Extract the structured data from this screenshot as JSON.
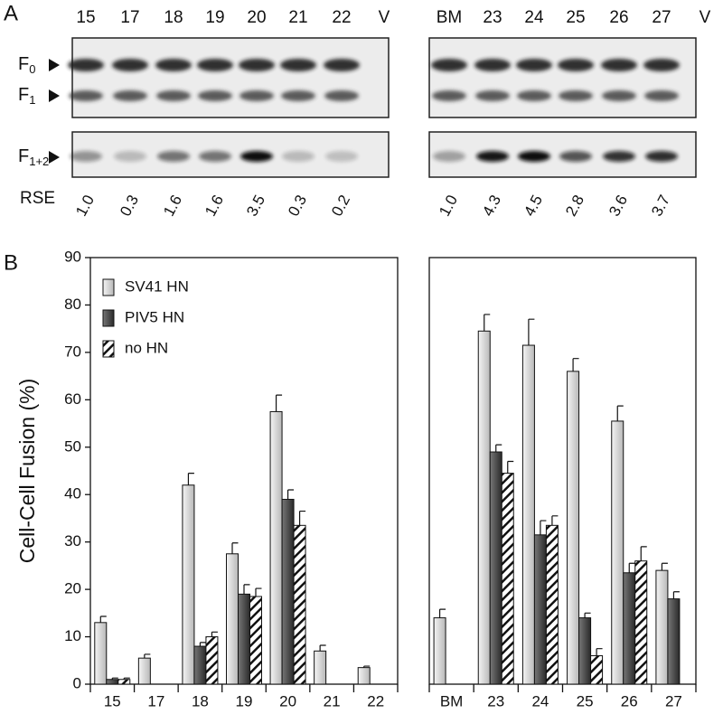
{
  "blot": {
    "panel_label": "A",
    "lanes_left": [
      "15",
      "17",
      "18",
      "19",
      "20",
      "21",
      "22",
      "V"
    ],
    "lanes_right": [
      "BM",
      "23",
      "24",
      "25",
      "26",
      "27",
      "V"
    ],
    "bands": [
      {
        "main": "F",
        "sub": "0"
      },
      {
        "main": "F",
        "sub": "1"
      },
      {
        "main": "F",
        "sub": "1+2"
      }
    ],
    "rse_label": "RSE",
    "rse_left": [
      "1.0",
      "0.3",
      "1.6",
      "1.6",
      "3.5",
      "0.3",
      "0.2"
    ],
    "rse_right": [
      "1.0",
      "4.3",
      "4.5",
      "2.8",
      "3.6",
      "3.7"
    ]
  },
  "chart_data": [
    {
      "type": "bar",
      "panel_label": "B",
      "y_label": "Cell-Cell Fusion (%)",
      "categories": [
        "15",
        "17",
        "18",
        "19",
        "20",
        "21",
        "22"
      ],
      "ylim": [
        0,
        90
      ],
      "yticks": [
        0,
        10,
        20,
        30,
        40,
        50,
        60,
        70,
        80,
        90
      ],
      "legend": "upper left",
      "series": [
        {
          "name": "SV41 HN",
          "color": "#d9d9d9",
          "values": [
            13,
            5.5,
            42,
            27.5,
            57.5,
            7,
            3.5
          ],
          "errors": [
            1.3,
            0.8,
            2.5,
            2.3,
            3.5,
            1.2,
            0.3
          ]
        },
        {
          "name": "PIV5 HN",
          "color": "#4d4d4d",
          "values": [
            1,
            null,
            8,
            19,
            39,
            null,
            null
          ],
          "errors": [
            0.3,
            null,
            0.8,
            2,
            2,
            null,
            null
          ]
        },
        {
          "name": "no HN",
          "color": "#ffffff",
          "hatch": true,
          "values": [
            1,
            null,
            10,
            18.5,
            33.5,
            null,
            null
          ],
          "errors": [
            0.3,
            null,
            1,
            1.7,
            3,
            null,
            null
          ]
        }
      ]
    },
    {
      "type": "bar",
      "categories": [
        "BM",
        "23",
        "24",
        "25",
        "26",
        "27"
      ],
      "ylim": [
        0,
        90
      ],
      "series": [
        {
          "color": "#d9d9d9",
          "values": [
            14,
            74.5,
            71.5,
            66,
            55.5,
            24
          ],
          "errors": [
            1.8,
            3.5,
            5.5,
            2.7,
            3.2,
            1.5
          ]
        },
        {
          "color": "#4d4d4d",
          "values": [
            null,
            49,
            31.5,
            14,
            23.5,
            18
          ],
          "errors": [
            null,
            1.5,
            3,
            1,
            2,
            1.5
          ]
        },
        {
          "color": "#ffffff",
          "hatch": true,
          "values": [
            null,
            44.5,
            33.5,
            6,
            26,
            null
          ],
          "errors": [
            null,
            2.5,
            2,
            1.5,
            3,
            null
          ]
        }
      ]
    }
  ]
}
